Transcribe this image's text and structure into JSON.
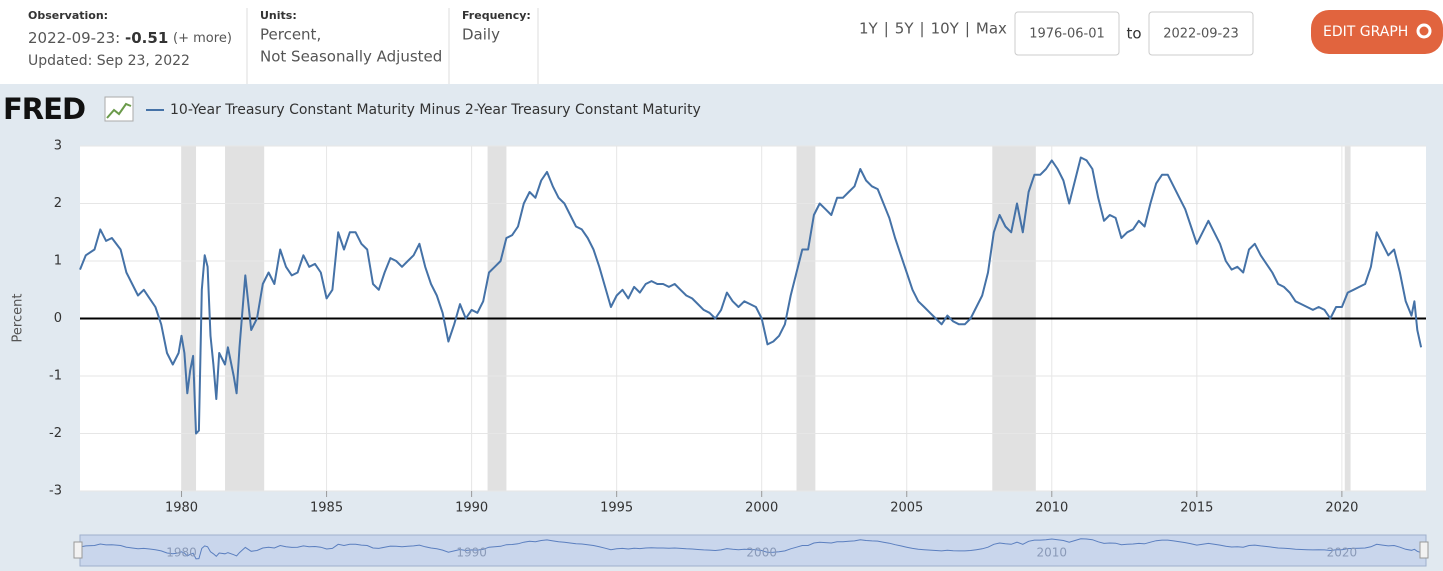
{
  "header": {
    "observation_label": "Observation:",
    "observation_date": "2022-09-23:",
    "observation_value": "-0.51",
    "more": "(+ more)",
    "updated": "Updated: Sep 23, 2022",
    "units_label": "Units:",
    "units_1": "Percent,",
    "units_2": "Not Seasonally Adjusted",
    "frequency_label": "Frequency:",
    "frequency": "Daily",
    "ranges": [
      "1Y",
      "5Y",
      "10Y",
      "Max"
    ],
    "start": "1976-06-01",
    "to": "to",
    "end": "2022-09-23",
    "edit": "EDIT GRAPH",
    "logo": "FRED"
  },
  "chart_data": {
    "type": "line",
    "ylabel": "Percent",
    "series": [
      {
        "name": "10-Year Treasury Constant Maturity Minus 2-Year Treasury Constant Maturity",
        "color": "#4572a7",
        "x": [
          1976.5,
          1976.7,
          1977.0,
          1977.2,
          1977.4,
          1977.6,
          1977.9,
          1978.1,
          1978.3,
          1978.5,
          1978.7,
          1978.9,
          1979.1,
          1979.3,
          1979.5,
          1979.7,
          1979.9,
          1980.0,
          1980.1,
          1980.2,
          1980.3,
          1980.4,
          1980.5,
          1980.6,
          1980.7,
          1980.8,
          1980.9,
          1981.0,
          1981.1,
          1981.2,
          1981.3,
          1981.5,
          1981.6,
          1981.8,
          1981.9,
          1982.0,
          1982.2,
          1982.4,
          1982.6,
          1982.8,
          1983.0,
          1983.2,
          1983.4,
          1983.6,
          1983.8,
          1984.0,
          1984.2,
          1984.4,
          1984.6,
          1984.8,
          1985.0,
          1985.2,
          1985.4,
          1985.6,
          1985.8,
          1986.0,
          1986.2,
          1986.4,
          1986.6,
          1986.8,
          1987.0,
          1987.2,
          1987.4,
          1987.6,
          1987.8,
          1988.0,
          1988.2,
          1988.4,
          1988.6,
          1988.8,
          1989.0,
          1989.2,
          1989.4,
          1989.6,
          1989.8,
          1990.0,
          1990.2,
          1990.4,
          1990.6,
          1990.8,
          1991.0,
          1991.2,
          1991.4,
          1991.6,
          1991.8,
          1992.0,
          1992.2,
          1992.4,
          1992.6,
          1992.8,
          1993.0,
          1993.2,
          1993.4,
          1993.6,
          1993.8,
          1994.0,
          1994.2,
          1994.4,
          1994.6,
          1994.8,
          1995.0,
          1995.2,
          1995.4,
          1995.6,
          1995.8,
          1996.0,
          1996.2,
          1996.4,
          1996.6,
          1996.8,
          1997.0,
          1997.2,
          1997.4,
          1997.6,
          1997.8,
          1998.0,
          1998.2,
          1998.4,
          1998.6,
          1998.8,
          1999.0,
          1999.2,
          1999.4,
          1999.6,
          1999.8,
          2000.0,
          2000.2,
          2000.4,
          2000.6,
          2000.8,
          2001.0,
          2001.2,
          2001.4,
          2001.6,
          2001.8,
          2002.0,
          2002.2,
          2002.4,
          2002.6,
          2002.8,
          2003.0,
          2003.2,
          2003.4,
          2003.6,
          2003.8,
          2004.0,
          2004.2,
          2004.4,
          2004.6,
          2004.8,
          2005.0,
          2005.2,
          2005.4,
          2005.6,
          2005.8,
          2006.0,
          2006.2,
          2006.4,
          2006.6,
          2006.8,
          2007.0,
          2007.2,
          2007.4,
          2007.6,
          2007.8,
          2008.0,
          2008.2,
          2008.4,
          2008.6,
          2008.8,
          2009.0,
          2009.2,
          2009.4,
          2009.6,
          2009.8,
          2010.0,
          2010.2,
          2010.4,
          2010.6,
          2010.8,
          2011.0,
          2011.2,
          2011.4,
          2011.6,
          2011.8,
          2012.0,
          2012.2,
          2012.4,
          2012.6,
          2012.8,
          2013.0,
          2013.2,
          2013.4,
          2013.6,
          2013.8,
          2014.0,
          2014.2,
          2014.4,
          2014.6,
          2014.8,
          2015.0,
          2015.2,
          2015.4,
          2015.6,
          2015.8,
          2016.0,
          2016.2,
          2016.4,
          2016.6,
          2016.8,
          2017.0,
          2017.2,
          2017.4,
          2017.6,
          2017.8,
          2018.0,
          2018.2,
          2018.4,
          2018.6,
          2018.8,
          2019.0,
          2019.2,
          2019.4,
          2019.6,
          2019.8,
          2020.0,
          2020.2,
          2020.4,
          2020.6,
          2020.8,
          2021.0,
          2021.2,
          2021.4,
          2021.6,
          2021.8,
          2022.0,
          2022.2,
          2022.4,
          2022.5,
          2022.6,
          2022.73
        ],
        "values": [
          0.85,
          1.1,
          1.2,
          1.55,
          1.35,
          1.4,
          1.2,
          0.8,
          0.6,
          0.4,
          0.5,
          0.35,
          0.2,
          -0.1,
          -0.6,
          -0.8,
          -0.6,
          -0.3,
          -0.6,
          -1.3,
          -0.9,
          -0.65,
          -2.0,
          -1.95,
          0.5,
          1.1,
          0.9,
          -0.3,
          -0.8,
          -1.4,
          -0.6,
          -0.8,
          -0.5,
          -1.0,
          -1.3,
          -0.5,
          0.75,
          -0.2,
          0.0,
          0.6,
          0.8,
          0.6,
          1.2,
          0.9,
          0.75,
          0.8,
          1.1,
          0.9,
          0.95,
          0.8,
          0.35,
          0.5,
          1.5,
          1.2,
          1.5,
          1.5,
          1.3,
          1.2,
          0.6,
          0.5,
          0.8,
          1.05,
          1.0,
          0.9,
          1.0,
          1.1,
          1.3,
          0.9,
          0.6,
          0.4,
          0.1,
          -0.4,
          -0.1,
          0.25,
          0.0,
          0.15,
          0.1,
          0.3,
          0.8,
          0.9,
          1.0,
          1.4,
          1.45,
          1.6,
          2.0,
          2.2,
          2.1,
          2.4,
          2.55,
          2.3,
          2.1,
          2.0,
          1.8,
          1.6,
          1.55,
          1.4,
          1.2,
          0.9,
          0.55,
          0.2,
          0.4,
          0.5,
          0.35,
          0.55,
          0.45,
          0.6,
          0.65,
          0.6,
          0.6,
          0.55,
          0.6,
          0.5,
          0.4,
          0.35,
          0.25,
          0.15,
          0.1,
          0.0,
          0.15,
          0.45,
          0.3,
          0.2,
          0.3,
          0.25,
          0.2,
          0.0,
          -0.45,
          -0.4,
          -0.3,
          -0.1,
          0.4,
          0.8,
          1.2,
          1.2,
          1.8,
          2.0,
          1.9,
          1.8,
          2.1,
          2.1,
          2.2,
          2.3,
          2.6,
          2.4,
          2.3,
          2.25,
          2.0,
          1.75,
          1.4,
          1.1,
          0.8,
          0.5,
          0.3,
          0.2,
          0.1,
          0.0,
          -0.1,
          0.05,
          -0.05,
          -0.1,
          -0.1,
          0.0,
          0.2,
          0.4,
          0.8,
          1.5,
          1.8,
          1.6,
          1.5,
          2.0,
          1.5,
          2.2,
          2.5,
          2.5,
          2.6,
          2.75,
          2.6,
          2.4,
          2.0,
          2.4,
          2.8,
          2.75,
          2.6,
          2.1,
          1.7,
          1.8,
          1.75,
          1.4,
          1.5,
          1.55,
          1.7,
          1.6,
          2.0,
          2.35,
          2.5,
          2.5,
          2.3,
          2.1,
          1.9,
          1.6,
          1.3,
          1.5,
          1.7,
          1.5,
          1.3,
          1.0,
          0.85,
          0.9,
          0.8,
          1.2,
          1.3,
          1.1,
          0.95,
          0.8,
          0.6,
          0.55,
          0.45,
          0.3,
          0.25,
          0.2,
          0.15,
          0.2,
          0.15,
          0.0,
          0.2,
          0.2,
          0.45,
          0.5,
          0.55,
          0.6,
          0.9,
          1.5,
          1.3,
          1.1,
          1.2,
          0.8,
          0.3,
          0.05,
          0.3,
          -0.2,
          -0.5
        ]
      }
    ],
    "recessions": [
      [
        1980.0,
        1980.5
      ],
      [
        1981.5,
        1982.85
      ],
      [
        1990.55,
        1991.2
      ],
      [
        2001.2,
        2001.85
      ],
      [
        2007.95,
        2009.45
      ],
      [
        2020.1,
        2020.3
      ]
    ],
    "xlim": [
      1976.5,
      2022.9
    ],
    "xticks": [
      1980,
      1985,
      1990,
      1995,
      2000,
      2005,
      2010,
      2015,
      2020
    ],
    "ylim": [
      -3,
      3
    ],
    "yticks": [
      -3,
      -2,
      -1,
      0,
      1,
      2,
      3
    ],
    "grid": true,
    "navigator_ticks": [
      1980,
      1990,
      2000,
      2010,
      2020
    ]
  }
}
